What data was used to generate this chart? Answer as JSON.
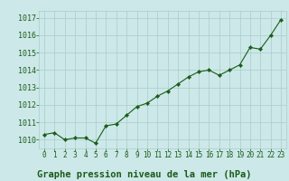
{
  "x": [
    0,
    1,
    2,
    3,
    4,
    5,
    6,
    7,
    8,
    9,
    10,
    11,
    12,
    13,
    14,
    15,
    16,
    17,
    18,
    19,
    20,
    21,
    22,
    23
  ],
  "y": [
    1010.3,
    1010.4,
    1010.0,
    1010.1,
    1010.1,
    1009.8,
    1010.8,
    1010.9,
    1011.4,
    1011.9,
    1012.1,
    1012.5,
    1012.8,
    1013.2,
    1013.6,
    1013.9,
    1014.0,
    1013.7,
    1014.0,
    1014.3,
    1015.3,
    1015.2,
    1016.0,
    1016.9
  ],
  "line_color": "#1a5c1a",
  "marker": "D",
  "marker_size": 2.2,
  "background_color": "#cce8e8",
  "grid_color": "#aacccc",
  "title": "Graphe pression niveau de la mer (hPa)",
  "title_color": "#1a5c1a",
  "title_fontsize": 7.5,
  "ylim": [
    1009.5,
    1017.4
  ],
  "yticks": [
    1010,
    1011,
    1012,
    1013,
    1014,
    1015,
    1016,
    1017
  ],
  "xticks": [
    0,
    1,
    2,
    3,
    4,
    5,
    6,
    7,
    8,
    9,
    10,
    11,
    12,
    13,
    14,
    15,
    16,
    17,
    18,
    19,
    20,
    21,
    22,
    23
  ],
  "tick_fontsize": 5.5,
  "tick_color": "#1a5c1a",
  "ytick_fontsize": 6.0
}
